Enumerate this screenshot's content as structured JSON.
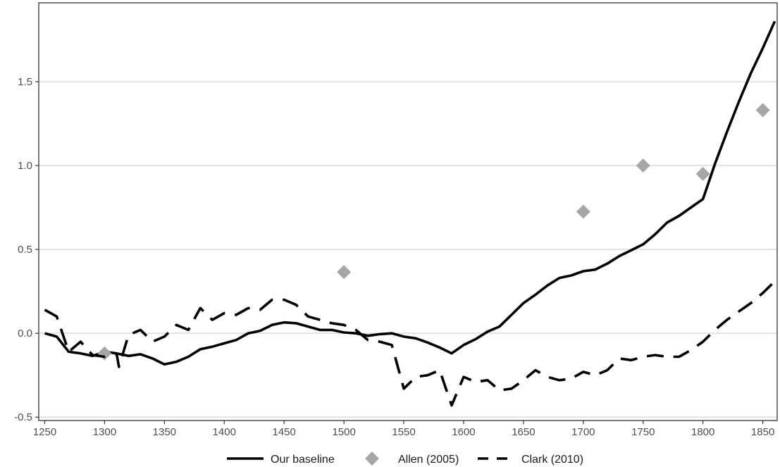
{
  "chart_data": {
    "type": "line",
    "title": "",
    "xlabel": "",
    "ylabel": "",
    "xlim": [
      1245,
      1862
    ],
    "ylim": [
      -0.52,
      1.97
    ],
    "x_ticks": [
      1250,
      1300,
      1350,
      1400,
      1450,
      1500,
      1550,
      1600,
      1650,
      1700,
      1750,
      1800,
      1850
    ],
    "y_ticks": [
      -0.5,
      0.0,
      0.5,
      1.0,
      1.5
    ],
    "y_tick_labels": [
      "-0.5",
      "0.0",
      "0.5",
      "1.0",
      "1.5"
    ],
    "grid": "horizontal",
    "legend_position": "bottom",
    "series": [
      {
        "name": "Our baseline",
        "style": "solid",
        "color": "#000000",
        "points": [
          [
            1250,
            0.0
          ],
          [
            1260,
            -0.02
          ],
          [
            1270,
            -0.11
          ],
          [
            1280,
            -0.12
          ],
          [
            1290,
            -0.135
          ],
          [
            1300,
            -0.11
          ],
          [
            1310,
            -0.12
          ],
          [
            1320,
            -0.135
          ],
          [
            1330,
            -0.125
          ],
          [
            1340,
            -0.15
          ],
          [
            1350,
            -0.185
          ],
          [
            1360,
            -0.17
          ],
          [
            1370,
            -0.14
          ],
          [
            1380,
            -0.095
          ],
          [
            1390,
            -0.08
          ],
          [
            1400,
            -0.06
          ],
          [
            1410,
            -0.04
          ],
          [
            1420,
            0.0
          ],
          [
            1430,
            0.015
          ],
          [
            1440,
            0.05
          ],
          [
            1450,
            0.065
          ],
          [
            1460,
            0.06
          ],
          [
            1470,
            0.04
          ],
          [
            1480,
            0.02
          ],
          [
            1490,
            0.02
          ],
          [
            1500,
            0.005
          ],
          [
            1510,
            0.0
          ],
          [
            1520,
            -0.015
          ],
          [
            1530,
            -0.005
          ],
          [
            1540,
            0.0
          ],
          [
            1550,
            -0.02
          ],
          [
            1560,
            -0.03
          ],
          [
            1570,
            -0.055
          ],
          [
            1580,
            -0.085
          ],
          [
            1590,
            -0.12
          ],
          [
            1600,
            -0.07
          ],
          [
            1610,
            -0.035
          ],
          [
            1620,
            0.01
          ],
          [
            1630,
            0.04
          ],
          [
            1640,
            0.11
          ],
          [
            1650,
            0.18
          ],
          [
            1660,
            0.23
          ],
          [
            1670,
            0.285
          ],
          [
            1680,
            0.33
          ],
          [
            1690,
            0.345
          ],
          [
            1700,
            0.37
          ],
          [
            1710,
            0.38
          ],
          [
            1720,
            0.415
          ],
          [
            1730,
            0.46
          ],
          [
            1740,
            0.495
          ],
          [
            1750,
            0.53
          ],
          [
            1760,
            0.59
          ],
          [
            1770,
            0.66
          ],
          [
            1780,
            0.7
          ],
          [
            1790,
            0.75
          ],
          [
            1800,
            0.8
          ],
          [
            1810,
            1.01
          ],
          [
            1820,
            1.2
          ],
          [
            1830,
            1.38
          ],
          [
            1840,
            1.55
          ],
          [
            1850,
            1.7
          ],
          [
            1860,
            1.86
          ]
        ]
      },
      {
        "name": "Allen (2005)",
        "style": "diamond",
        "color": "#a6a6a6",
        "points": [
          [
            1300,
            -0.12
          ],
          [
            1500,
            0.365
          ],
          [
            1700,
            0.725
          ],
          [
            1750,
            1.0
          ],
          [
            1800,
            0.95
          ],
          [
            1850,
            1.33
          ]
        ]
      },
      {
        "name": "Clark (2010)",
        "style": "dashed",
        "color": "#000000",
        "points": [
          [
            1250,
            0.14
          ],
          [
            1260,
            0.1
          ],
          [
            1270,
            -0.11
          ],
          [
            1280,
            -0.05
          ],
          [
            1290,
            -0.13
          ],
          [
            1300,
            -0.14
          ],
          [
            1310,
            -0.12
          ],
          [
            1312,
            -0.2
          ],
          [
            1320,
            -0.01
          ],
          [
            1330,
            0.02
          ],
          [
            1340,
            -0.05
          ],
          [
            1350,
            -0.02
          ],
          [
            1360,
            0.05
          ],
          [
            1370,
            0.02
          ],
          [
            1380,
            0.15
          ],
          [
            1390,
            0.08
          ],
          [
            1400,
            0.12
          ],
          [
            1410,
            0.11
          ],
          [
            1420,
            0.15
          ],
          [
            1430,
            0.14
          ],
          [
            1440,
            0.2
          ],
          [
            1450,
            0.2
          ],
          [
            1460,
            0.17
          ],
          [
            1470,
            0.1
          ],
          [
            1480,
            0.08
          ],
          [
            1490,
            0.06
          ],
          [
            1500,
            0.05
          ],
          [
            1510,
            0.02
          ],
          [
            1520,
            -0.04
          ],
          [
            1530,
            -0.05
          ],
          [
            1540,
            -0.07
          ],
          [
            1550,
            -0.33
          ],
          [
            1560,
            -0.26
          ],
          [
            1570,
            -0.25
          ],
          [
            1580,
            -0.22
          ],
          [
            1590,
            -0.43
          ],
          [
            1600,
            -0.26
          ],
          [
            1610,
            -0.29
          ],
          [
            1620,
            -0.28
          ],
          [
            1630,
            -0.34
          ],
          [
            1640,
            -0.33
          ],
          [
            1650,
            -0.28
          ],
          [
            1660,
            -0.22
          ],
          [
            1670,
            -0.26
          ],
          [
            1680,
            -0.28
          ],
          [
            1690,
            -0.27
          ],
          [
            1700,
            -0.23
          ],
          [
            1710,
            -0.25
          ],
          [
            1720,
            -0.22
          ],
          [
            1730,
            -0.15
          ],
          [
            1740,
            -0.16
          ],
          [
            1750,
            -0.14
          ],
          [
            1760,
            -0.13
          ],
          [
            1770,
            -0.14
          ],
          [
            1780,
            -0.14
          ],
          [
            1790,
            -0.1
          ],
          [
            1800,
            -0.05
          ],
          [
            1810,
            0.02
          ],
          [
            1820,
            0.08
          ],
          [
            1830,
            0.13
          ],
          [
            1840,
            0.18
          ],
          [
            1850,
            0.24
          ],
          [
            1860,
            0.31
          ]
        ]
      }
    ]
  }
}
